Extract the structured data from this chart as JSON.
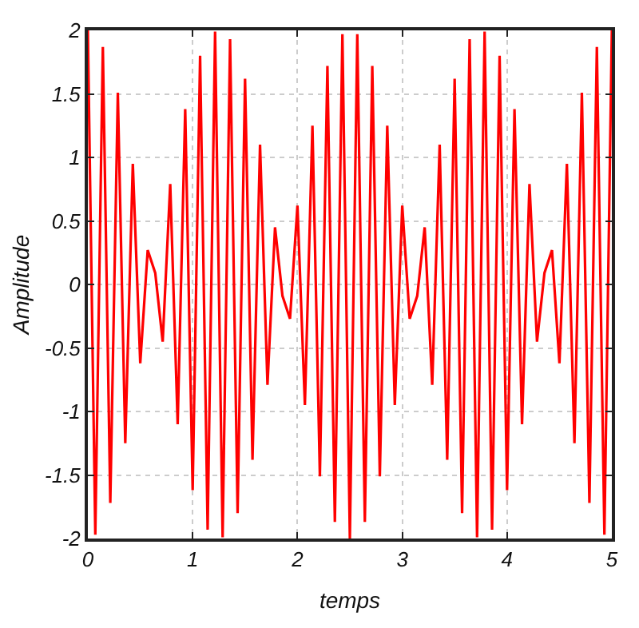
{
  "chart_data": {
    "type": "line",
    "xlabel": "temps",
    "ylabel": "Amplitude",
    "x": [
      0,
      0.071,
      0.143,
      0.214,
      0.286,
      0.357,
      0.429,
      0.5,
      0.571,
      0.643,
      0.714,
      0.786,
      0.857,
      0.929,
      1,
      1.071,
      1.143,
      1.214,
      1.286,
      1.357,
      1.429,
      1.5,
      1.571,
      1.643,
      1.714,
      1.786,
      1.857,
      1.929,
      2,
      2.071,
      2.143,
      2.214,
      2.286,
      2.357,
      2.429,
      2.5,
      2.571,
      2.643,
      2.714,
      2.786,
      2.857,
      2.929,
      3,
      3.071,
      3.143,
      3.214,
      3.286,
      3.357,
      3.429,
      3.5,
      3.571,
      3.643,
      3.714,
      3.786,
      3.857,
      3.929,
      4,
      4.071,
      4.143,
      4.214,
      4.286,
      4.357,
      4.429,
      4.5,
      4.571,
      4.643,
      4.714,
      4.786,
      4.857,
      4.929,
      5
    ],
    "series": [
      {
        "color": "#ff0000",
        "values": [
          2.0,
          -1.97,
          1.87,
          -1.72,
          1.51,
          -1.25,
          0.95,
          -0.62,
          0.27,
          0.09,
          -0.45,
          0.79,
          -1.1,
          1.38,
          -1.62,
          1.8,
          -1.93,
          1.99,
          -1.99,
          1.93,
          -1.8,
          1.62,
          -1.38,
          1.1,
          -0.79,
          0.45,
          -0.09,
          -0.27,
          0.62,
          -0.95,
          1.25,
          -1.51,
          1.72,
          -1.87,
          1.97,
          -2.0,
          1.97,
          -1.87,
          1.72,
          -1.51,
          1.25,
          -0.95,
          0.62,
          -0.27,
          -0.09,
          0.45,
          -0.79,
          1.1,
          -1.38,
          1.62,
          -1.8,
          1.93,
          -1.99,
          1.99,
          -1.93,
          1.8,
          -1.62,
          1.38,
          -1.1,
          0.79,
          -0.45,
          0.09,
          0.27,
          -0.62,
          0.95,
          -1.25,
          1.51,
          -1.72,
          1.87,
          -1.97,
          2.0
        ]
      }
    ],
    "xlim": [
      0,
      5
    ],
    "xticks": [
      0,
      1,
      2,
      3,
      4,
      5
    ],
    "ylim": [
      -2,
      2
    ],
    "yticks": [
      -2,
      -1.5,
      -1,
      -0.5,
      0,
      0.5,
      1,
      1.5,
      2
    ],
    "grid": true,
    "marker": "none",
    "line_style": "solid"
  }
}
